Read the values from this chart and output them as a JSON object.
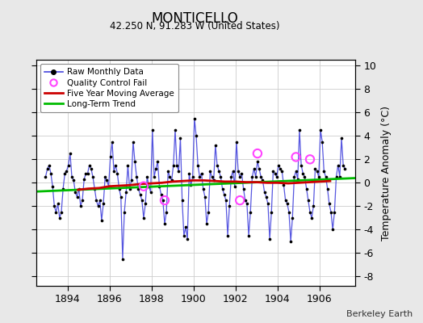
{
  "title": "MONTICELLO",
  "subtitle": "42.250 N, 91.283 W (United States)",
  "ylabel": "Temperature Anomaly (°C)",
  "credit": "Berkeley Earth",
  "xlim": [
    1892.5,
    1907.7
  ],
  "ylim": [
    -8.8,
    10.5
  ],
  "yticks": [
    -8,
    -6,
    -4,
    -2,
    0,
    2,
    4,
    6,
    8,
    10
  ],
  "xticks": [
    1894,
    1896,
    1898,
    1900,
    1902,
    1904,
    1906
  ],
  "bg_color": "#e8e8e8",
  "plot_bg_color": "#ffffff",
  "raw_line_color": "#4444dd",
  "raw_dot_color": "#000000",
  "ma_color": "#cc0000",
  "trend_color": "#00bb00",
  "qc_color": "#ff44ff",
  "raw_data": {
    "times": [
      1892.958,
      1893.042,
      1893.125,
      1893.208,
      1893.292,
      1893.375,
      1893.458,
      1893.542,
      1893.625,
      1893.708,
      1893.792,
      1893.875,
      1893.958,
      1894.042,
      1894.125,
      1894.208,
      1894.292,
      1894.375,
      1894.458,
      1894.542,
      1894.625,
      1894.708,
      1894.792,
      1894.875,
      1894.958,
      1895.042,
      1895.125,
      1895.208,
      1895.292,
      1895.375,
      1895.458,
      1895.542,
      1895.625,
      1895.708,
      1895.792,
      1895.875,
      1895.958,
      1896.042,
      1896.125,
      1896.208,
      1896.292,
      1896.375,
      1896.458,
      1896.542,
      1896.625,
      1896.708,
      1896.792,
      1896.875,
      1896.958,
      1897.042,
      1897.125,
      1897.208,
      1897.292,
      1897.375,
      1897.458,
      1897.542,
      1897.625,
      1897.708,
      1897.792,
      1897.875,
      1897.958,
      1898.042,
      1898.125,
      1898.208,
      1898.292,
      1898.375,
      1898.458,
      1898.542,
      1898.625,
      1898.708,
      1898.792,
      1898.875,
      1898.958,
      1899.042,
      1899.125,
      1899.208,
      1899.292,
      1899.375,
      1899.458,
      1899.542,
      1899.625,
      1899.708,
      1899.792,
      1899.875,
      1899.958,
      1900.042,
      1900.125,
      1900.208,
      1900.292,
      1900.375,
      1900.458,
      1900.542,
      1900.625,
      1900.708,
      1900.792,
      1900.875,
      1900.958,
      1901.042,
      1901.125,
      1901.208,
      1901.292,
      1901.375,
      1901.458,
      1901.542,
      1901.625,
      1901.708,
      1901.792,
      1901.875,
      1901.958,
      1902.042,
      1902.125,
      1902.208,
      1902.292,
      1902.375,
      1902.458,
      1902.542,
      1902.625,
      1902.708,
      1902.792,
      1902.875,
      1902.958,
      1903.042,
      1903.125,
      1903.208,
      1903.292,
      1903.375,
      1903.458,
      1903.542,
      1903.625,
      1903.708,
      1903.792,
      1903.875,
      1903.958,
      1904.042,
      1904.125,
      1904.208,
      1904.292,
      1904.375,
      1904.458,
      1904.542,
      1904.625,
      1904.708,
      1904.792,
      1904.875,
      1904.958,
      1905.042,
      1905.125,
      1905.208,
      1905.292,
      1905.375,
      1905.458,
      1905.542,
      1905.625,
      1905.708,
      1905.792,
      1905.875,
      1905.958,
      1906.042,
      1906.125,
      1906.208,
      1906.292,
      1906.375,
      1906.458,
      1906.542,
      1906.625,
      1906.708,
      1906.792,
      1906.875,
      1906.958,
      1907.042,
      1907.125,
      1907.208
    ],
    "values": [
      0.5,
      1.2,
      1.5,
      0.8,
      -0.3,
      -2.0,
      -2.5,
      -1.8,
      -3.0,
      -2.5,
      -0.5,
      0.8,
      1.0,
      1.5,
      2.5,
      0.5,
      0.2,
      -0.8,
      -1.2,
      -0.5,
      -2.0,
      -1.5,
      0.3,
      0.8,
      0.8,
      1.5,
      1.2,
      0.5,
      -0.5,
      -1.5,
      -2.0,
      -1.5,
      -3.2,
      -1.8,
      0.5,
      0.2,
      -0.3,
      2.2,
      3.5,
      1.0,
      1.5,
      0.8,
      -0.5,
      -1.2,
      -6.5,
      -2.5,
      -0.8,
      1.5,
      -0.5,
      0.2,
      3.5,
      1.8,
      0.5,
      -0.5,
      -1.0,
      -1.5,
      -3.0,
      -1.8,
      0.5,
      -0.3,
      -0.8,
      4.5,
      0.5,
      1.2,
      1.8,
      -0.3,
      -1.0,
      -1.5,
      -3.5,
      -2.5,
      1.0,
      0.5,
      0.2,
      1.5,
      4.5,
      1.5,
      1.0,
      3.8,
      -1.5,
      -4.5,
      -3.8,
      -4.8,
      0.8,
      -0.2,
      0.5,
      5.5,
      4.0,
      1.5,
      0.5,
      0.8,
      -0.5,
      -1.2,
      -3.5,
      -2.5,
      1.0,
      0.5,
      0.2,
      3.2,
      1.5,
      1.0,
      0.5,
      -0.5,
      -1.0,
      -1.5,
      -4.5,
      -2.0,
      0.5,
      1.0,
      -0.3,
      3.5,
      1.0,
      0.5,
      0.8,
      -0.5,
      -1.5,
      -1.8,
      -4.5,
      -2.5,
      0.5,
      1.2,
      0.5,
      1.8,
      1.2,
      0.5,
      0.2,
      -0.8,
      -1.2,
      -1.8,
      -4.8,
      -2.5,
      1.0,
      0.8,
      0.5,
      1.5,
      1.2,
      1.0,
      -0.2,
      -1.5,
      -1.8,
      -2.5,
      -5.0,
      -3.0,
      0.5,
      1.0,
      0.3,
      4.5,
      1.5,
      0.8,
      0.5,
      -0.5,
      -1.5,
      -2.5,
      -3.0,
      -2.0,
      1.2,
      1.0,
      0.5,
      4.5,
      3.5,
      1.0,
      0.5,
      -0.5,
      -1.8,
      -2.5,
      -4.0,
      -2.5,
      0.5,
      1.5,
      0.5,
      3.8,
      1.5,
      1.2
    ]
  },
  "qc_fail_times": [
    1897.625,
    1898.625,
    1902.208,
    1903.042,
    1904.875,
    1905.542
  ],
  "qc_fail_values": [
    -0.3,
    -1.5,
    -1.5,
    2.5,
    2.2,
    2.0
  ],
  "moving_avg": {
    "times": [
      1894.5,
      1895.0,
      1895.5,
      1896.0,
      1896.5,
      1897.0,
      1897.5,
      1898.0,
      1898.5,
      1899.0,
      1899.5,
      1900.0,
      1900.5,
      1901.0,
      1901.5,
      1902.0,
      1902.5,
      1903.0,
      1903.5,
      1904.0,
      1904.5,
      1905.0,
      1905.5,
      1906.0,
      1906.5
    ],
    "values": [
      -0.6,
      -0.5,
      -0.45,
      -0.3,
      -0.25,
      -0.2,
      -0.1,
      -0.05,
      0.0,
      0.1,
      0.15,
      0.2,
      0.2,
      0.15,
      0.1,
      0.1,
      0.05,
      0.05,
      0.0,
      0.0,
      -0.05,
      0.0,
      0.05,
      0.1,
      0.15
    ]
  },
  "trend": {
    "times": [
      1892.5,
      1907.7
    ],
    "values": [
      -0.75,
      0.4
    ]
  },
  "legend_items": [
    {
      "label": "Raw Monthly Data",
      "type": "line_dot",
      "color": "#4444dd",
      "dot_color": "#000000"
    },
    {
      "label": "Quality Control Fail",
      "type": "circle_open",
      "color": "#ff44ff"
    },
    {
      "label": "Five Year Moving Average",
      "type": "line",
      "color": "#cc0000"
    },
    {
      "label": "Long-Term Trend",
      "type": "line",
      "color": "#00bb00"
    }
  ]
}
